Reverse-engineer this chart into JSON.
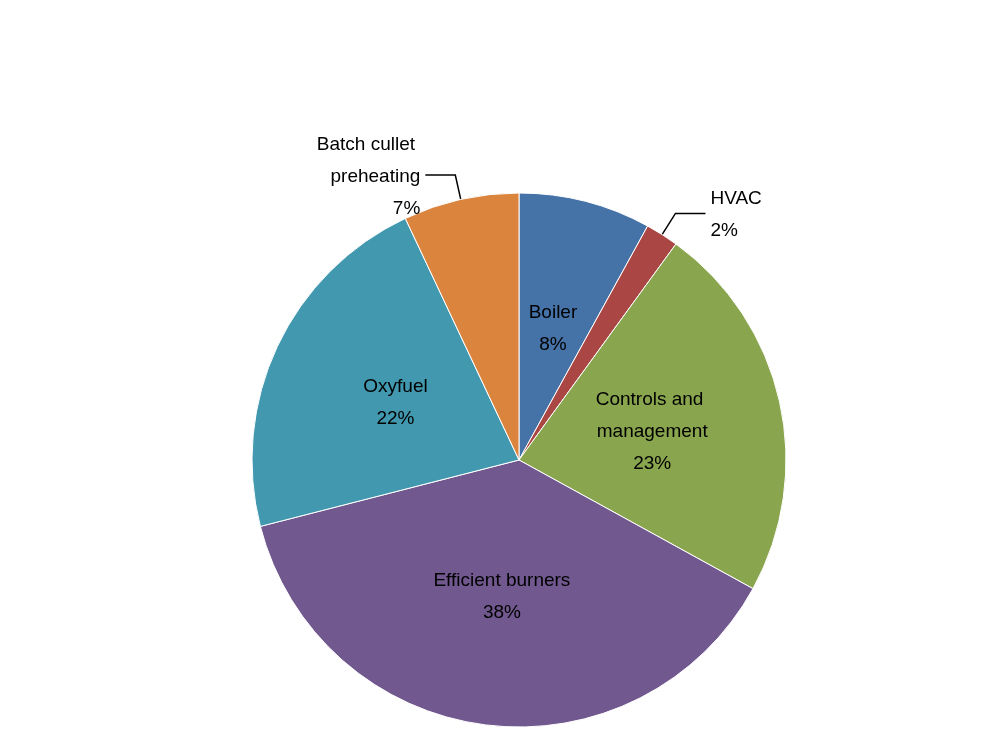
{
  "chart_data": {
    "type": "pie",
    "categories": [
      "Boiler",
      "HVAC",
      "Controls and management",
      "Efficient burners",
      "Oxyfuel",
      "Batch cullet preheating"
    ],
    "values": [
      8,
      2,
      23,
      38,
      22,
      7
    ],
    "value_labels": [
      "8%",
      "2%",
      "23%",
      "38%",
      "22%",
      "7%"
    ],
    "colors": [
      "#4572a7",
      "#aa4643",
      "#89a54e",
      "#71588f",
      "#4198af",
      "#db843d"
    ],
    "legend": false
  }
}
